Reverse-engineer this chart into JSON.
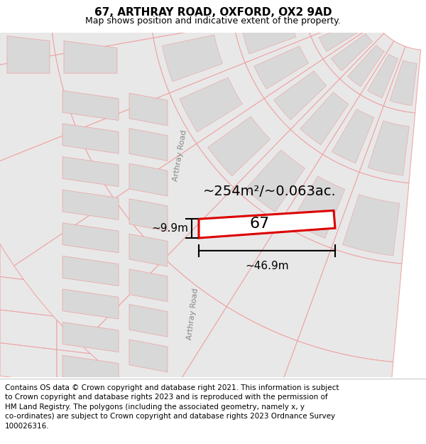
{
  "title": "67, ARTHRAY ROAD, OXFORD, OX2 9AD",
  "subtitle": "Map shows position and indicative extent of the property.",
  "footer": "Contains OS data © Crown copyright and database right 2021. This information is subject\nto Crown copyright and database rights 2023 and is reproduced with the permission of\nHM Land Registry. The polygons (including the associated geometry, namely x, y\nco-ordinates) are subject to Crown copyright and database rights 2023 Ordnance Survey\n100026316.",
  "area_text": "~254m²/~0.063ac.",
  "width_text": "~46.9m",
  "height_text": "~9.9m",
  "road_label_top": "Arthray Road",
  "road_label_bottom": "Arthray Road",
  "number_label": "67",
  "map_bg": "#ffffff",
  "plot_fill": "#e8e8e8",
  "plot_stroke": "#f0a0a0",
  "plot67_fill": "#ffffff",
  "plot67_stroke": "#dd0000",
  "road_fill": "#e8e8e8",
  "road_stroke": "#bbbbbb",
  "title_fontsize": 11,
  "subtitle_fontsize": 9,
  "footer_fontsize": 7.5,
  "annotation_color": "#111111",
  "road_text_color": "#888888"
}
